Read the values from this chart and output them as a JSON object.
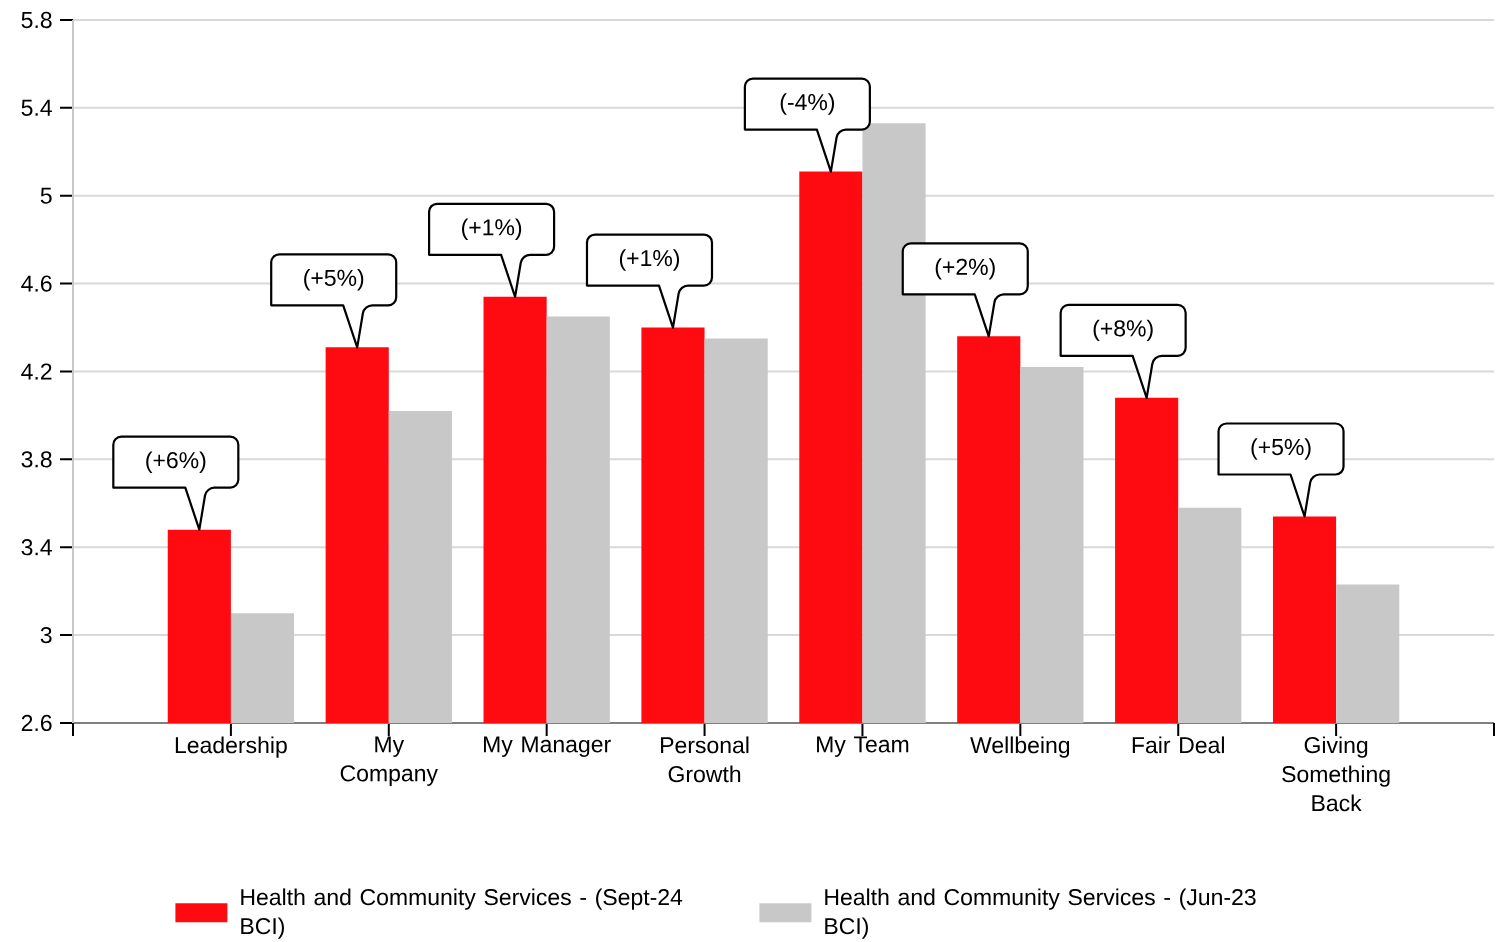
{
  "chart_data": {
    "type": "bar",
    "categories": [
      "Leadership",
      "My Company",
      "My Manager",
      "Personal Growth",
      "My Team",
      "Wellbeing",
      "Fair Deal",
      "Giving Something Back"
    ],
    "series": [
      {
        "name": "Health and Community Services - (Sept-24 BCI)",
        "color": "#fe0b12",
        "values": [
          3.48,
          4.31,
          4.54,
          4.4,
          5.11,
          4.36,
          4.08,
          3.54
        ]
      },
      {
        "name": "Health and Community Services - (Jun-23 BCI)",
        "color": "#c8c8c8",
        "values": [
          3.1,
          4.02,
          4.45,
          4.35,
          5.33,
          4.22,
          3.58,
          3.23
        ]
      }
    ],
    "ylim": [
      2.6,
      5.8
    ],
    "yticks": [
      2.6,
      3,
      3.4,
      3.8,
      4.2,
      4.6,
      5,
      5.4,
      5.8
    ],
    "grid": "y",
    "legend": "bottom",
    "annotations": [
      {
        "text": "(+6%)",
        "x": "Leadership",
        "y": 3.48
      },
      {
        "text": "(+5%)",
        "x": "My Company",
        "y": 4.31
      },
      {
        "text": "(+1%)",
        "x": "My Manager",
        "y": 4.54
      },
      {
        "text": "(+1%)",
        "x": "Personal Growth",
        "y": 4.4
      },
      {
        "text": "(-4%)",
        "x": "My Team",
        "y": 5.11
      },
      {
        "text": "(+2%)",
        "x": "Wellbeing",
        "y": 4.36
      },
      {
        "text": "(+8%)",
        "x": "Fair Deal",
        "y": 4.08
      },
      {
        "text": "(+5%)",
        "x": "Giving Something Back",
        "y": 3.54
      }
    ]
  }
}
